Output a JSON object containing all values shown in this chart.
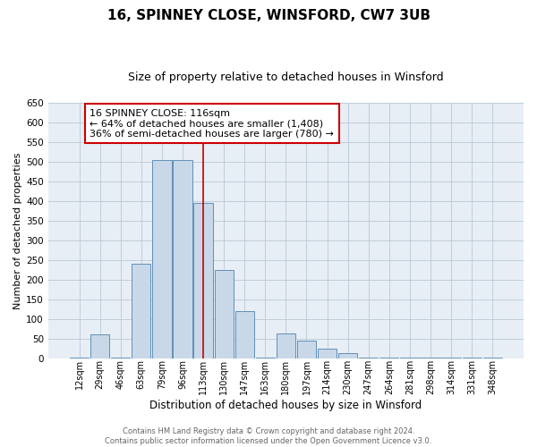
{
  "title": "16, SPINNEY CLOSE, WINSFORD, CW7 3UB",
  "subtitle": "Size of property relative to detached houses in Winsford",
  "xlabel": "Distribution of detached houses by size in Winsford",
  "ylabel": "Number of detached properties",
  "footer_line1": "Contains HM Land Registry data © Crown copyright and database right 2024.",
  "footer_line2": "Contains public sector information licensed under the Open Government Licence v3.0.",
  "bin_labels": [
    "12sqm",
    "29sqm",
    "46sqm",
    "63sqm",
    "79sqm",
    "96sqm",
    "113sqm",
    "130sqm",
    "147sqm",
    "163sqm",
    "180sqm",
    "197sqm",
    "214sqm",
    "230sqm",
    "247sqm",
    "264sqm",
    "281sqm",
    "298sqm",
    "314sqm",
    "331sqm",
    "348sqm"
  ],
  "bin_values": [
    2,
    60,
    2,
    240,
    505,
    505,
    395,
    225,
    120,
    2,
    62,
    45,
    25,
    12,
    2,
    2,
    2,
    2,
    2,
    2,
    2
  ],
  "bar_color": "#c8d8e8",
  "bar_edge_color": "#6090b8",
  "vline_x_index": 6,
  "vline_color": "#cc0000",
  "annotation_text": "16 SPINNEY CLOSE: 116sqm\n← 64% of detached houses are smaller (1,408)\n36% of semi-detached houses are larger (780) →",
  "annotation_box_color": "#cc0000",
  "ylim": [
    0,
    650
  ],
  "yticks": [
    0,
    50,
    100,
    150,
    200,
    250,
    300,
    350,
    400,
    450,
    500,
    550,
    600,
    650
  ],
  "ax_facecolor": "#e8eef5",
  "background_color": "#ffffff",
  "grid_color": "#b8c8d8",
  "title_fontsize": 11,
  "subtitle_fontsize": 9,
  "xlabel_fontsize": 8.5,
  "ylabel_fontsize": 8,
  "annotation_fontsize": 8,
  "footer_fontsize": 6,
  "footer_color": "#666666"
}
